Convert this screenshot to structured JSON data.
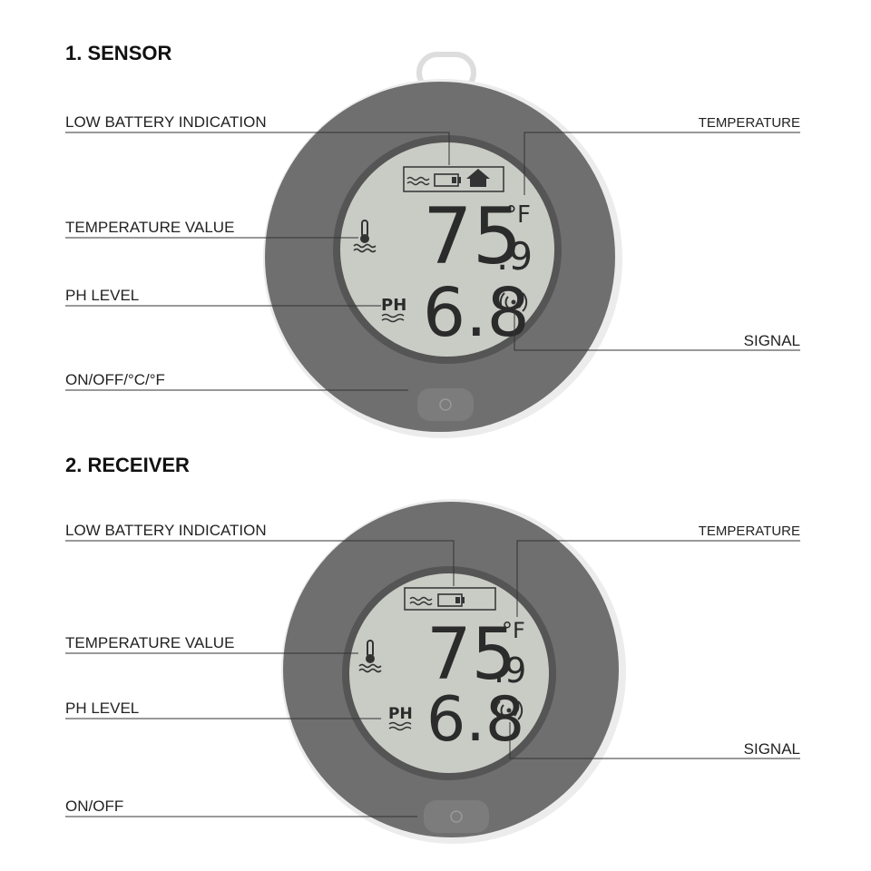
{
  "sections": [
    {
      "title": "1. SENSOR",
      "labels": {
        "low_battery": "LOW BATTERY INDICATION",
        "temperature": "TEMPERATURE",
        "temperature_value": "TEMPERATURE VALUE",
        "ph_level": "PH LEVEL",
        "signal": "SIGNAL",
        "button": "ON/OFF/°C/°F"
      },
      "display": {
        "temperature": "75",
        "temperature_decimal": ".9",
        "unit": "°F",
        "ph": "6.8",
        "ph_label": "PH"
      }
    },
    {
      "title": "2. RECEIVER",
      "labels": {
        "low_battery": "LOW BATTERY INDICATION",
        "temperature": "TEMPERATURE",
        "temperature_value": "TEMPERATURE VALUE",
        "ph_level": "PH LEVEL",
        "signal": "SIGNAL",
        "button": "ON/OFF"
      },
      "display": {
        "temperature": "75",
        "temperature_decimal": ".9",
        "unit": "°F",
        "ph": "6.8",
        "ph_label": "PH"
      }
    }
  ]
}
